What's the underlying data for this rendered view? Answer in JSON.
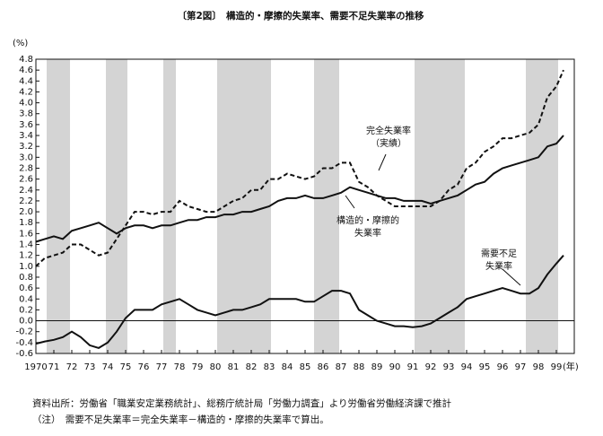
{
  "chart_data": {
    "type": "line",
    "title": "〔第2図〕　構造的・摩擦的失業率、需要不足失業率の推移",
    "y_label": "(%)",
    "x_unit": "(年)",
    "xlim": [
      1970,
      2000
    ],
    "ylim": [
      -0.6,
      4.8
    ],
    "xticks": [
      1970,
      {
        "value": 1971,
        "label": "71"
      },
      {
        "value": 1972,
        "label": "72"
      },
      {
        "value": 1973,
        "label": "73"
      },
      {
        "value": 1974,
        "label": "74"
      },
      {
        "value": 1975,
        "label": "75"
      },
      {
        "value": 1976,
        "label": "76"
      },
      {
        "value": 1977,
        "label": "77"
      },
      {
        "value": 1978,
        "label": "78"
      },
      {
        "value": 1979,
        "label": "79"
      },
      {
        "value": 1980,
        "label": "80"
      },
      {
        "value": 1981,
        "label": "81"
      },
      {
        "value": 1982,
        "label": "82"
      },
      {
        "value": 1983,
        "label": "83"
      },
      {
        "value": 1984,
        "label": "84"
      },
      {
        "value": 1985,
        "label": "85"
      },
      {
        "value": 1986,
        "label": "86"
      },
      {
        "value": 1987,
        "label": "87"
      },
      {
        "value": 1988,
        "label": "88"
      },
      {
        "value": 1989,
        "label": "89"
      },
      {
        "value": 1990,
        "label": "90"
      },
      {
        "value": 1991,
        "label": "91"
      },
      {
        "value": 1992,
        "label": "92"
      },
      {
        "value": 1993,
        "label": "93"
      },
      {
        "value": 1994,
        "label": "94"
      },
      {
        "value": 1995,
        "label": "95"
      },
      {
        "value": 1996,
        "label": "96"
      },
      {
        "value": 1997,
        "label": "97"
      },
      {
        "value": 1998,
        "label": "98"
      },
      {
        "value": 1999,
        "label": "99"
      }
    ],
    "yticks": [
      4.8,
      4.6,
      4.4,
      4.2,
      {
        "value": 4.0,
        "label": "4.0"
      },
      3.8,
      3.6,
      3.4,
      3.2,
      {
        "value": 3.0,
        "label": "3.0"
      },
      2.8,
      2.6,
      2.4,
      2.2,
      {
        "value": 2.0,
        "label": "2.0"
      },
      1.8,
      1.6,
      1.4,
      1.2,
      {
        "value": 1.0,
        "label": "1.0"
      },
      0.8,
      0.6,
      0.4,
      0.2,
      {
        "value": 0.0,
        "label": "0.0"
      },
      -0.2,
      -0.4,
      -0.6
    ],
    "shaded_periods": [
      [
        1970.6,
        1971.9
      ],
      [
        1973.9,
        1975.1
      ],
      [
        1977.1,
        1977.8
      ],
      [
        1980.1,
        1983.1
      ],
      [
        1985.5,
        1986.9
      ],
      [
        1991.1,
        1993.9
      ],
      [
        1997.3,
        1999.1
      ]
    ],
    "shade_color": "#d4d4d4",
    "x": [
      1970,
      1970.5,
      1971,
      1971.5,
      1972,
      1972.5,
      1973,
      1973.5,
      1974,
      1974.5,
      1975,
      1975.5,
      1976,
      1976.5,
      1977,
      1977.5,
      1978,
      1978.5,
      1979,
      1979.5,
      1980,
      1980.5,
      1981,
      1981.5,
      1982,
      1982.5,
      1983,
      1983.5,
      1984,
      1984.5,
      1985,
      1985.5,
      1986,
      1986.5,
      1987,
      1987.5,
      1988,
      1988.5,
      1989,
      1989.5,
      1990,
      1990.5,
      1991,
      1991.5,
      1992,
      1992.5,
      1993,
      1993.5,
      1994,
      1994.5,
      1995,
      1995.5,
      1996,
      1996.5,
      1997,
      1997.5,
      1998,
      1998.5,
      1999,
      1999.4
    ],
    "series": [
      {
        "color": "#111111",
        "dashed": true,
        "values": [
          1.0,
          1.15,
          1.2,
          1.25,
          1.4,
          1.4,
          1.3,
          1.2,
          1.25,
          1.5,
          1.75,
          2.0,
          2.0,
          1.95,
          2.0,
          2.0,
          2.2,
          2.1,
          2.05,
          2.0,
          2.0,
          2.1,
          2.2,
          2.25,
          2.4,
          2.4,
          2.6,
          2.6,
          2.7,
          2.65,
          2.6,
          2.65,
          2.8,
          2.8,
          2.9,
          2.9,
          2.55,
          2.45,
          2.3,
          2.2,
          2.1,
          2.1,
          2.1,
          2.1,
          2.1,
          2.2,
          2.4,
          2.5,
          2.8,
          2.9,
          3.1,
          3.2,
          3.35,
          3.35,
          3.4,
          3.45,
          3.6,
          4.1,
          4.3,
          4.6
        ]
      },
      {
        "color": "#111111",
        "dashed": false,
        "values": [
          1.45,
          1.5,
          1.55,
          1.5,
          1.65,
          1.7,
          1.75,
          1.8,
          1.7,
          1.6,
          1.7,
          1.75,
          1.75,
          1.7,
          1.75,
          1.75,
          1.8,
          1.85,
          1.85,
          1.9,
          1.9,
          1.95,
          1.95,
          2.0,
          2.0,
          2.05,
          2.1,
          2.2,
          2.25,
          2.25,
          2.3,
          2.25,
          2.25,
          2.3,
          2.35,
          2.45,
          2.4,
          2.35,
          2.3,
          2.25,
          2.25,
          2.2,
          2.2,
          2.2,
          2.15,
          2.2,
          2.25,
          2.3,
          2.4,
          2.5,
          2.55,
          2.7,
          2.8,
          2.85,
          2.9,
          2.95,
          3.0,
          3.2,
          3.25,
          3.4
        ]
      },
      {
        "color": "#111111",
        "dashed": false,
        "values": [
          -0.42,
          -0.38,
          -0.35,
          -0.3,
          -0.2,
          -0.3,
          -0.45,
          -0.5,
          -0.4,
          -0.2,
          0.05,
          0.2,
          0.2,
          0.2,
          0.3,
          0.35,
          0.4,
          0.3,
          0.2,
          0.15,
          0.1,
          0.15,
          0.2,
          0.2,
          0.25,
          0.3,
          0.4,
          0.4,
          0.4,
          0.4,
          0.35,
          0.35,
          0.45,
          0.55,
          0.55,
          0.5,
          0.2,
          0.1,
          0.0,
          -0.05,
          -0.1,
          -0.1,
          -0.12,
          -0.1,
          -0.05,
          0.05,
          0.15,
          0.25,
          0.4,
          0.45,
          0.5,
          0.55,
          0.6,
          0.55,
          0.5,
          0.5,
          0.6,
          0.85,
          1.05,
          1.2
        ]
      }
    ],
    "annotations": [
      {
        "lines": [
          "完全失業率",
          "（実績）"
        ]
      },
      {
        "lines": [
          "構造的・摩擦的",
          "失業率"
        ]
      },
      {
        "lines": [
          "需要不足",
          "失業率"
        ]
      }
    ],
    "notes": [
      "資料出所：労働省「職業安定業務統計」、総務庁統計局「労働力調査」より労働省労働経済課で推計",
      "（注）　需要不足失業率＝完全失業率－構造的・摩擦的失業率で算出。"
    ]
  }
}
